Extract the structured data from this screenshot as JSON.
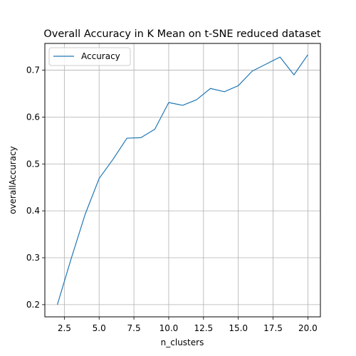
{
  "chart_data": {
    "type": "line",
    "title": "Overall Accuracy in K Mean on t-SNE reduced dataset",
    "xlabel": "n_clusters",
    "ylabel": "overallAccuracy",
    "xlim": [
      1.1,
      20.9
    ],
    "ylim": [
      0.174,
      0.757
    ],
    "x_ticks": [
      2.5,
      5.0,
      7.5,
      10.0,
      12.5,
      15.0,
      17.5,
      20.0
    ],
    "x_tick_labels": [
      "2.5",
      "5.0",
      "7.5",
      "10.0",
      "12.5",
      "15.0",
      "17.5",
      "20.0"
    ],
    "y_ticks": [
      0.2,
      0.3,
      0.4,
      0.5,
      0.6,
      0.7
    ],
    "y_tick_labels": [
      "0.2",
      "0.3",
      "0.4",
      "0.5",
      "0.6",
      "0.7"
    ],
    "grid": true,
    "legend_position": "top-left",
    "series": [
      {
        "name": "Accuracy",
        "color": "#1f77b4",
        "x": [
          2,
          3,
          4,
          5,
          6,
          7,
          8,
          9,
          10,
          11,
          12,
          13,
          14,
          15,
          16,
          17,
          18,
          19,
          20
        ],
        "values": [
          0.2,
          0.299,
          0.393,
          0.469,
          0.51,
          0.555,
          0.556,
          0.574,
          0.631,
          0.625,
          0.637,
          0.661,
          0.654,
          0.667,
          0.698,
          0.713,
          0.728,
          0.69,
          0.733
        ]
      }
    ]
  }
}
